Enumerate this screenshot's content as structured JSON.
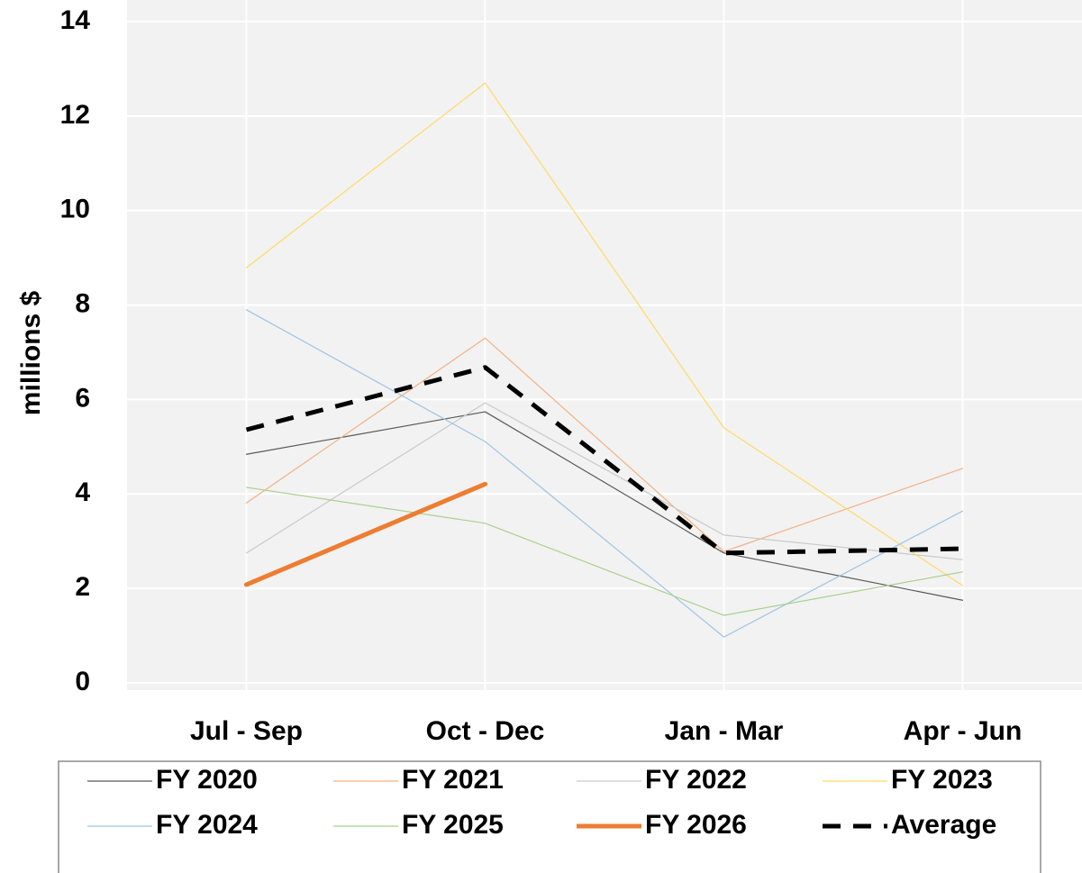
{
  "chart_data": {
    "type": "line",
    "y_label": "millions $",
    "categories": [
      "Jul - Sep",
      "Oct - Dec",
      "Jan - Mar",
      "Apr - Jun"
    ],
    "series": [
      {
        "name": "FY 2020",
        "color": "#595959",
        "width": 1.2,
        "values": [
          4.84,
          5.74,
          2.75,
          1.75
        ]
      },
      {
        "name": "FY 2021",
        "color": "#f4b183",
        "width": 1.2,
        "values": [
          3.81,
          7.3,
          2.78,
          4.54
        ]
      },
      {
        "name": "FY 2022",
        "color": "#c9c9c9",
        "width": 1.2,
        "values": [
          2.75,
          5.93,
          3.13,
          2.61
        ]
      },
      {
        "name": "FY 2023",
        "color": "#ffd966",
        "width": 1.2,
        "values": [
          8.79,
          12.7,
          5.4,
          2.06
        ]
      },
      {
        "name": "FY 2024",
        "color": "#9dc3e6",
        "width": 1.2,
        "values": [
          7.9,
          5.11,
          0.97,
          3.64
        ]
      },
      {
        "name": "FY 2025",
        "color": "#a9d18e",
        "width": 1.2,
        "values": [
          4.14,
          3.38,
          1.43,
          2.35
        ]
      },
      {
        "name": "FY 2026",
        "color": "#ed7d31",
        "width": 5,
        "values": [
          2.08,
          4.21,
          null,
          null
        ]
      },
      {
        "name": "Average",
        "color": "#000000",
        "width": 5,
        "dash": true,
        "values": [
          5.36,
          6.68,
          2.75,
          2.84
        ]
      }
    ],
    "ylim": [
      0,
      14
    ],
    "yticks": [
      0,
      2,
      4,
      6,
      8,
      10,
      12,
      14
    ],
    "grid": true,
    "legend": "bottom"
  }
}
